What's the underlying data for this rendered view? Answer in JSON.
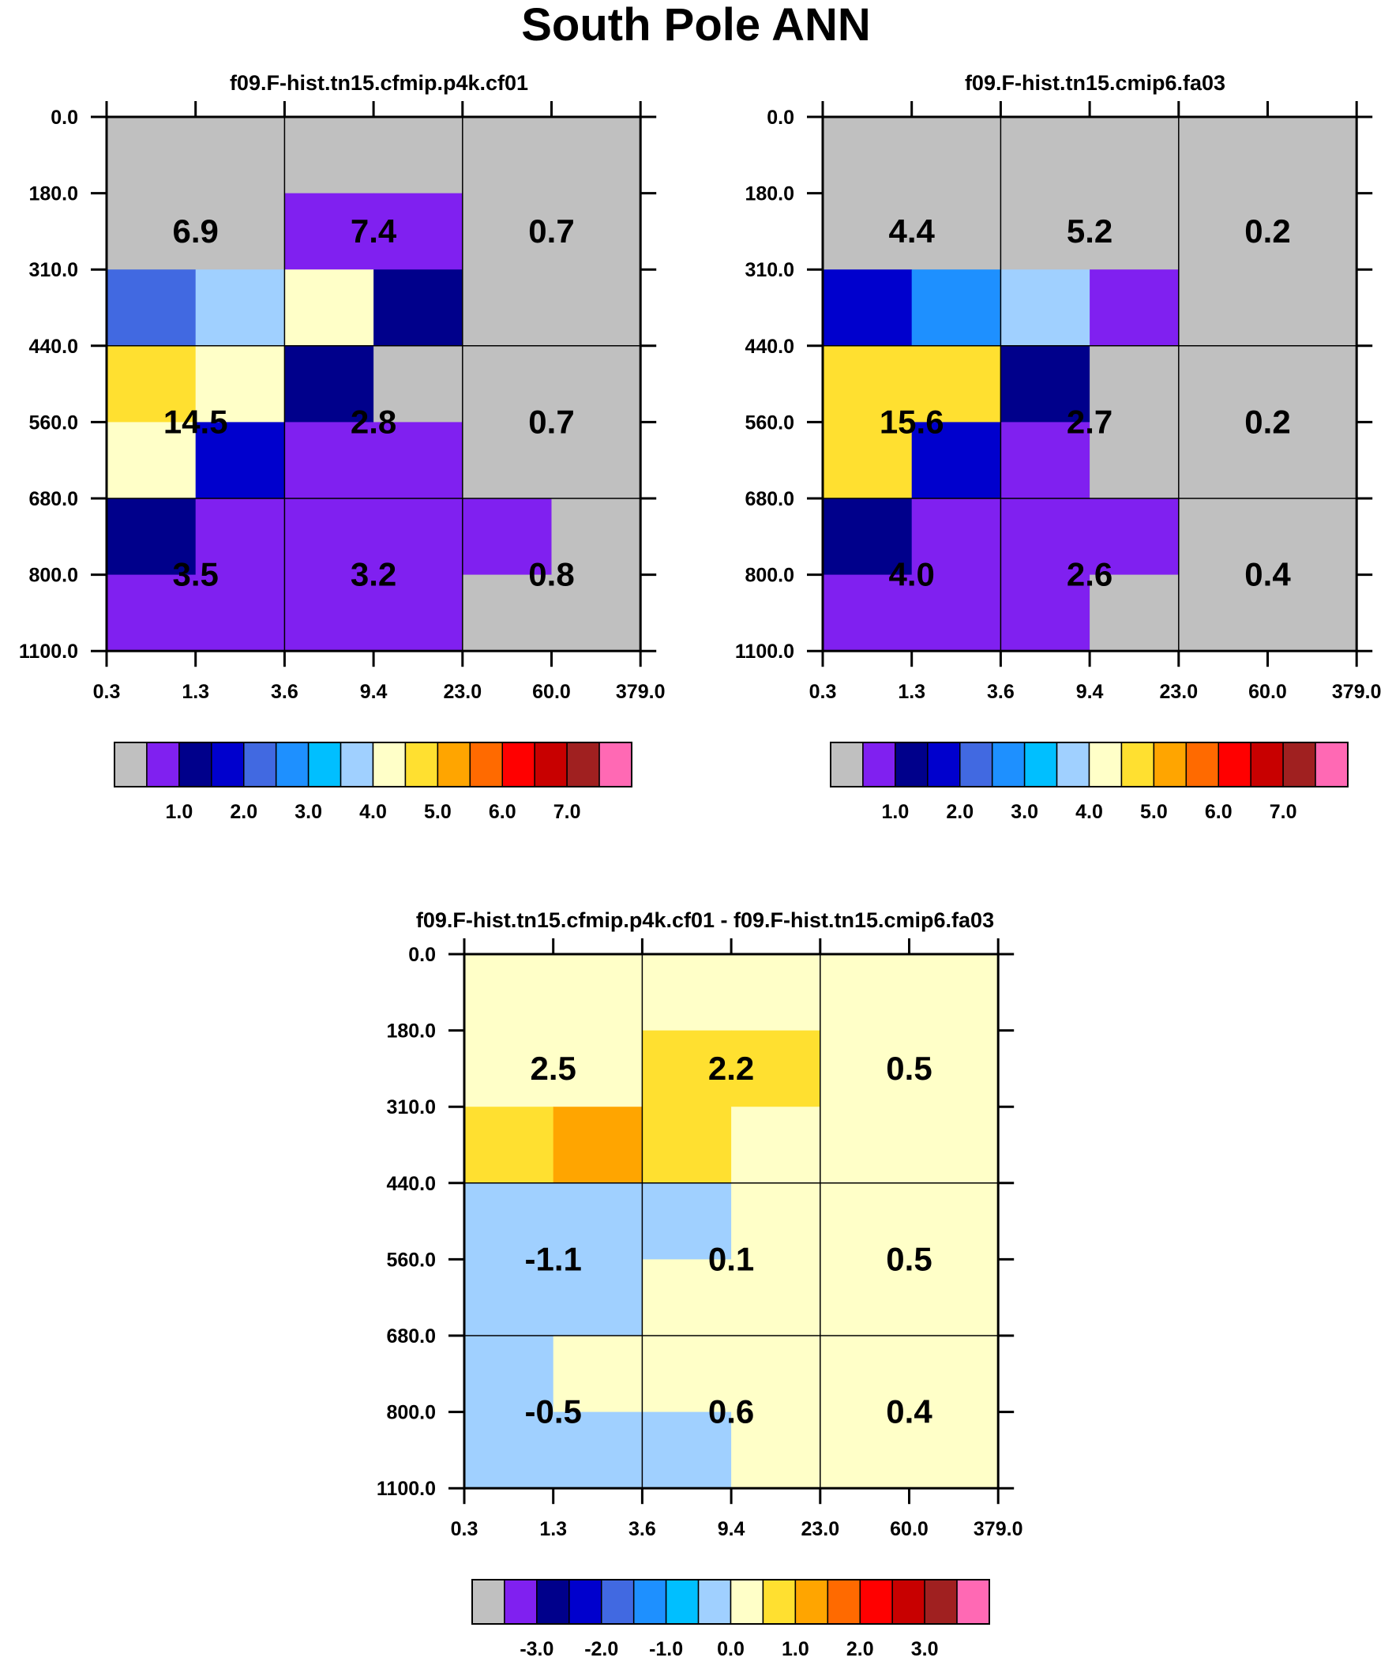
{
  "page": {
    "title": "South Pole ANN"
  },
  "palette": [
    "#c0c0c0",
    "#8020f0",
    "#00008b",
    "#0000cd",
    "#4169e1",
    "#1e90ff",
    "#00bfff",
    "#a0d0ff",
    "#ffffc8",
    "#ffe030",
    "#ffa500",
    "#ff6a00",
    "#ff0000",
    "#c80000",
    "#a02020",
    "#ff69b4"
  ],
  "chart_data": [
    {
      "type": "heatmap",
      "title": "f09.F-hist.tn15.cfmip.p4k.cf01",
      "x_ticks": [
        "0.3",
        "1.3",
        "3.6",
        "9.4",
        "23.0",
        "60.0",
        "379.0"
      ],
      "y_ticks": [
        "0.0",
        "180.0",
        "310.0",
        "440.0",
        "560.0",
        "680.0",
        "800.0",
        "1100.0"
      ],
      "cell_colors": [
        [
          0,
          0,
          0,
          0,
          0,
          0
        ],
        [
          0,
          0,
          1,
          1,
          0,
          0
        ],
        [
          4,
          7,
          8,
          2,
          0,
          0
        ],
        [
          9,
          8,
          2,
          0,
          0,
          0
        ],
        [
          8,
          3,
          1,
          1,
          0,
          0
        ],
        [
          2,
          1,
          1,
          1,
          1,
          0
        ],
        [
          1,
          1,
          1,
          1,
          0,
          0
        ]
      ],
      "box_values": [
        [
          "6.9",
          "7.4",
          "0.7"
        ],
        [
          "14.5",
          "2.8",
          "0.7"
        ],
        [
          "3.5",
          "3.2",
          "0.8"
        ]
      ],
      "colorbar_labels": [
        "1.0",
        "2.0",
        "3.0",
        "4.0",
        "5.0",
        "6.0",
        "7.0"
      ]
    },
    {
      "type": "heatmap",
      "title": "f09.F-hist.tn15.cmip6.fa03",
      "x_ticks": [
        "0.3",
        "1.3",
        "3.6",
        "9.4",
        "23.0",
        "60.0",
        "379.0"
      ],
      "y_ticks": [
        "0.0",
        "180.0",
        "310.0",
        "440.0",
        "560.0",
        "680.0",
        "800.0",
        "1100.0"
      ],
      "cell_colors": [
        [
          0,
          0,
          0,
          0,
          0,
          0
        ],
        [
          0,
          0,
          0,
          0,
          0,
          0
        ],
        [
          3,
          5,
          7,
          1,
          0,
          0
        ],
        [
          9,
          9,
          2,
          0,
          0,
          0
        ],
        [
          9,
          3,
          1,
          0,
          0,
          0
        ],
        [
          2,
          1,
          1,
          1,
          0,
          0
        ],
        [
          1,
          1,
          1,
          0,
          0,
          0
        ]
      ],
      "box_values": [
        [
          "4.4",
          "5.2",
          "0.2"
        ],
        [
          "15.6",
          "2.7",
          "0.2"
        ],
        [
          "4.0",
          "2.6",
          "0.4"
        ]
      ],
      "colorbar_labels": [
        "1.0",
        "2.0",
        "3.0",
        "4.0",
        "5.0",
        "6.0",
        "7.0"
      ]
    },
    {
      "type": "heatmap",
      "title": "f09.F-hist.tn15.cfmip.p4k.cf01 - f09.F-hist.tn15.cmip6.fa03",
      "x_ticks": [
        "0.3",
        "1.3",
        "3.6",
        "9.4",
        "23.0",
        "60.0",
        "379.0"
      ],
      "y_ticks": [
        "0.0",
        "180.0",
        "310.0",
        "440.0",
        "560.0",
        "680.0",
        "800.0",
        "1100.0"
      ],
      "cell_colors": [
        [
          8,
          8,
          8,
          8,
          8,
          8
        ],
        [
          8,
          8,
          9,
          9,
          8,
          8
        ],
        [
          9,
          10,
          9,
          8,
          8,
          8
        ],
        [
          7,
          7,
          7,
          8,
          8,
          8
        ],
        [
          7,
          7,
          8,
          8,
          8,
          8
        ],
        [
          7,
          8,
          8,
          8,
          8,
          8
        ],
        [
          7,
          7,
          7,
          8,
          8,
          8
        ]
      ],
      "box_values": [
        [
          "2.5",
          "2.2",
          "0.5"
        ],
        [
          "-1.1",
          "0.1",
          "0.5"
        ],
        [
          "-0.5",
          "0.6",
          "0.4"
        ]
      ],
      "colorbar_labels": [
        "-3.0",
        "-2.0",
        "-1.0",
        "0.0",
        "1.0",
        "2.0",
        "3.0"
      ]
    }
  ]
}
